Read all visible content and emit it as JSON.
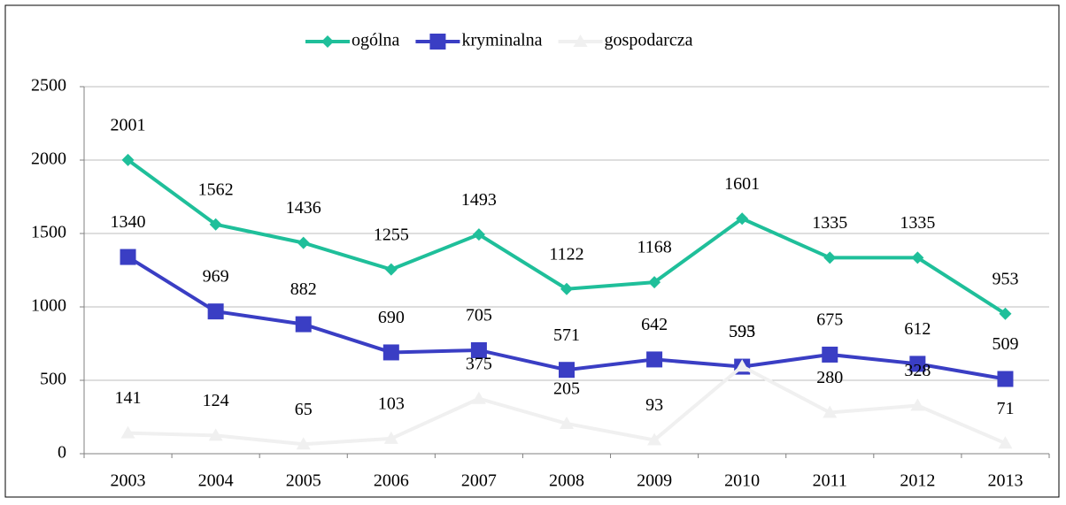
{
  "chart_data": {
    "type": "line",
    "categories": [
      "2003",
      "2004",
      "2005",
      "2006",
      "2007",
      "2008",
      "2009",
      "2010",
      "2011",
      "2012",
      "2013"
    ],
    "series": [
      {
        "name": "ogólna",
        "color": "#1fbf9a",
        "marker": "diamond",
        "values": [
          2001,
          1562,
          1436,
          1255,
          1493,
          1122,
          1168,
          1601,
          1335,
          1335,
          953
        ]
      },
      {
        "name": "kryminalna",
        "color": "#3a3ec4",
        "marker": "square",
        "values": [
          1340,
          969,
          882,
          690,
          705,
          571,
          642,
          593,
          675,
          612,
          509
        ]
      },
      {
        "name": "gospodarcza",
        "color": "#f0f0f0",
        "marker": "triangle",
        "values": [
          141,
          124,
          65,
          103,
          375,
          205,
          93,
          595,
          280,
          328,
          71
        ]
      }
    ],
    "ylim": [
      0,
      2500
    ],
    "yticks": [
      0,
      500,
      1000,
      1500,
      2000,
      2500
    ],
    "grid": true,
    "legend": "top"
  }
}
